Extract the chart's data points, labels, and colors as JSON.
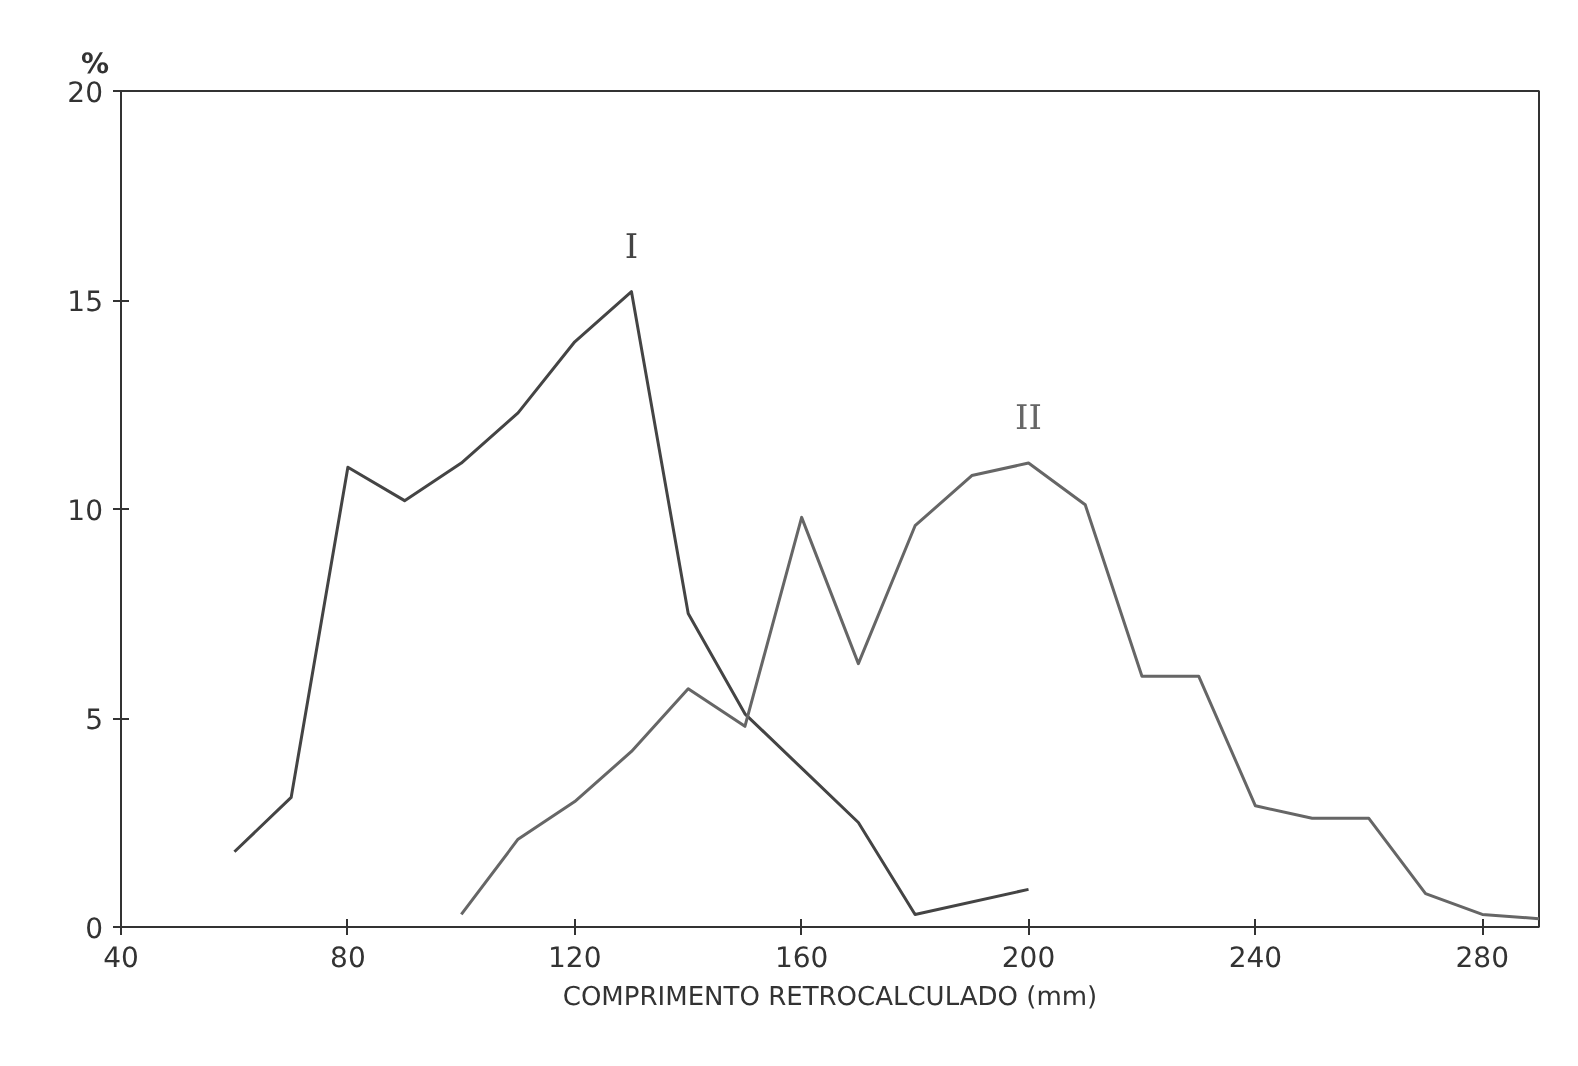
{
  "chart_data": {
    "type": "line",
    "xlabel": "COMPRIMENTO RETROCALCULADO (mm)",
    "ylabel": "%",
    "xlim": [
      40,
      290
    ],
    "ylim": [
      0,
      20
    ],
    "xticks": [
      40,
      80,
      120,
      160,
      200,
      240,
      280
    ],
    "yticks": [
      0,
      5,
      10,
      15,
      20
    ],
    "grid": false,
    "legend": false,
    "marker": "none",
    "line_style": "solid",
    "series": [
      {
        "name": "I",
        "color": "#444444",
        "x": [
          60,
          70,
          80,
          90,
          100,
          110,
          120,
          130,
          140,
          150,
          160,
          170,
          180,
          200
        ],
        "values": [
          1.8,
          3.1,
          11,
          10.2,
          11.1,
          12.3,
          14,
          15.2,
          7.5,
          5.1,
          3.8,
          2.5,
          0.3,
          0.9
        ]
      },
      {
        "name": "II",
        "color": "#666666",
        "x": [
          100,
          110,
          120,
          130,
          140,
          150,
          160,
          170,
          180,
          190,
          200,
          210,
          220,
          230,
          240,
          250,
          260,
          270,
          280,
          290
        ],
        "values": [
          0.3,
          2.1,
          3.0,
          4.2,
          5.7,
          4.8,
          9.8,
          6.3,
          9.6,
          10.8,
          11.1,
          10.1,
          6.0,
          6.0,
          2.9,
          2.6,
          2.6,
          0.8,
          0.3,
          0.2
        ]
      }
    ]
  }
}
